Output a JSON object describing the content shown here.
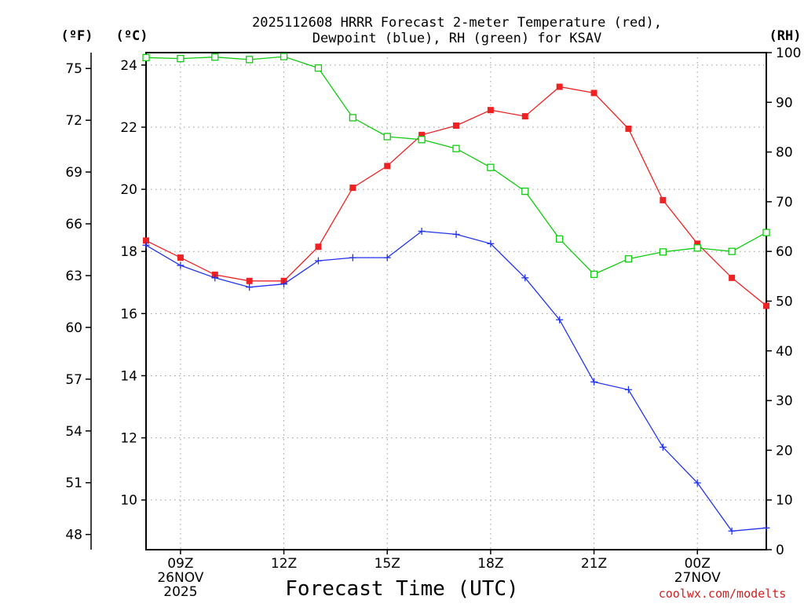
{
  "chart_data": {
    "type": "line",
    "title": "2025112608 HRRR Forecast 2-meter Temperature (red), Dewpoint (blue), RH (green) for KSAV",
    "title_lines": [
      "2025112608 HRRR Forecast 2-meter Temperature (red),",
      "Dewpoint (blue), RH (green) for KSAV"
    ],
    "xlabel": "Forecast Time (UTC)",
    "credit": "coolwx.com/modelts",
    "axis_units": {
      "fahrenheit": "(ºF)",
      "celsius": "(ºC)",
      "rh": "(RH)"
    },
    "x_hours_utc": [
      8,
      9,
      10,
      11,
      12,
      13,
      14,
      15,
      16,
      17,
      18,
      19,
      20,
      21,
      22,
      23,
      24,
      25,
      26
    ],
    "xlim": [
      8,
      26
    ],
    "x_ticks": [
      {
        "hour": 9,
        "lines": [
          "09Z",
          "26NOV",
          "2025"
        ]
      },
      {
        "hour": 12,
        "lines": [
          "12Z"
        ]
      },
      {
        "hour": 15,
        "lines": [
          "15Z"
        ]
      },
      {
        "hour": 18,
        "lines": [
          "18Z"
        ]
      },
      {
        "hour": 21,
        "lines": [
          "21Z"
        ]
      },
      {
        "hour": 24,
        "lines": [
          "00Z",
          "27NOV"
        ]
      }
    ],
    "celsius_axis": {
      "ylim": [
        8.4,
        24.4
      ],
      "ticks": [
        10,
        12,
        14,
        16,
        18,
        20,
        22,
        24
      ],
      "labels": [
        "10",
        "12",
        "14",
        "16",
        "18",
        "20",
        "22",
        "24"
      ]
    },
    "fahrenheit_axis": {
      "ticks": [
        48,
        51,
        54,
        57,
        60,
        63,
        66,
        69,
        72,
        75
      ],
      "labels": [
        "48",
        "51",
        "54",
        "57",
        "60",
        "63",
        "66",
        "69",
        "72",
        "75"
      ]
    },
    "rh_axis": {
      "ylim": [
        0,
        100
      ],
      "ticks": [
        0,
        10,
        20,
        30,
        40,
        50,
        60,
        70,
        80,
        90,
        100
      ],
      "labels": [
        "0",
        "10",
        "20",
        "30",
        "40",
        "50",
        "60",
        "70",
        "80",
        "90",
        "100"
      ]
    },
    "series": [
      {
        "name": "2-meter Temperature",
        "units": "degC",
        "axis": "celsius",
        "color": "#ee2222",
        "marker": "filled-square",
        "values": [
          18.35,
          17.8,
          17.25,
          17.05,
          17.05,
          18.15,
          20.05,
          20.75,
          21.75,
          22.05,
          22.55,
          22.35,
          23.3,
          23.1,
          21.95,
          19.65,
          18.25,
          17.15,
          16.25
        ]
      },
      {
        "name": "Dewpoint",
        "units": "degC",
        "axis": "celsius",
        "color": "#2233ee",
        "marker": "plus",
        "values": [
          18.2,
          17.55,
          17.15,
          16.85,
          16.95,
          17.7,
          17.8,
          17.8,
          18.65,
          18.55,
          18.25,
          17.15,
          15.8,
          13.8,
          13.55,
          11.7,
          10.55,
          9.0,
          9.1
        ]
      },
      {
        "name": "RH",
        "units": "%",
        "axis": "rh",
        "color": "#11cc11",
        "marker": "open-square",
        "values": [
          99.0,
          98.8,
          99.1,
          98.6,
          99.2,
          96.9,
          86.9,
          83.1,
          82.5,
          80.7,
          76.9,
          72.1,
          62.5,
          55.4,
          58.5,
          59.9,
          60.7,
          60.0,
          63.8
        ]
      }
    ],
    "grid": true
  }
}
